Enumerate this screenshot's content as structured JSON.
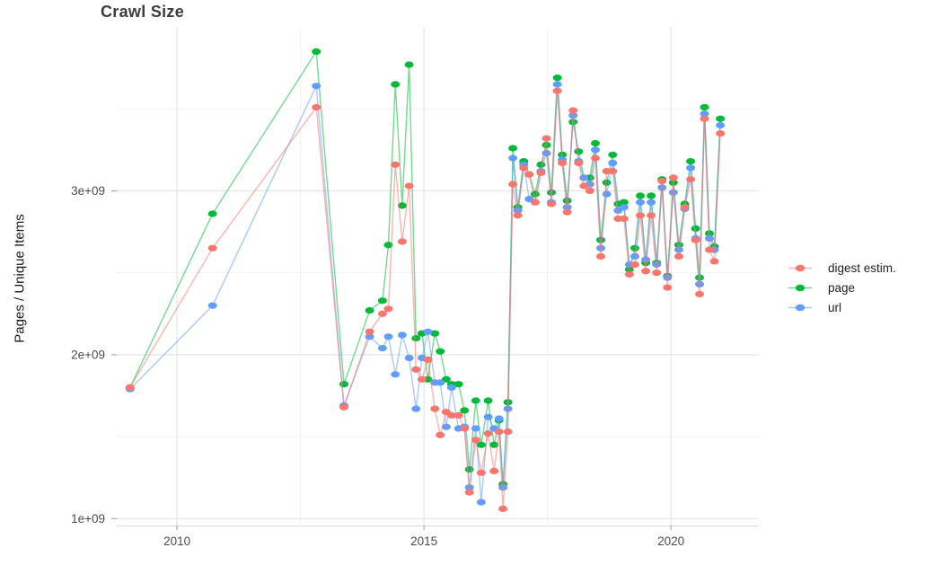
{
  "title": "Crawl Size",
  "chart_data": {
    "type": "line",
    "title": "Crawl Size",
    "xlabel": "",
    "ylabel": "Pages / Unique Items",
    "x_unit": "year (decimal date of crawl)",
    "y_unit": "count, 1e9 (billions) of items",
    "xlim": [
      2008.78,
      2021.78
    ],
    "ylim_billions": [
      0.958,
      4.0
    ],
    "grid": true,
    "legend_position": "right",
    "x_major_ticks": [
      {
        "value": 2010,
        "label": "2010"
      },
      {
        "value": 2015,
        "label": "2015"
      },
      {
        "value": 2020,
        "label": "2020"
      }
    ],
    "x_minor_gridlines": [
      2012.5,
      2017.5
    ],
    "y_major_ticks": [
      {
        "value": 1,
        "label": "1e+09"
      },
      {
        "value": 2,
        "label": "2e+09"
      },
      {
        "value": 3,
        "label": "3e+09"
      }
    ],
    "y_minor_gridlines": [
      1.5,
      2.5,
      3.5
    ],
    "x": [
      2009.05,
      2010.72,
      2012.82,
      2013.38,
      2013.9,
      2014.16,
      2014.28,
      2014.42,
      2014.56,
      2014.7,
      2014.84,
      2014.96,
      2015.08,
      2015.22,
      2015.33,
      2015.45,
      2015.56,
      2015.7,
      2015.82,
      2015.92,
      2016.05,
      2016.16,
      2016.3,
      2016.42,
      2016.52,
      2016.6,
      2016.7,
      2016.8,
      2016.9,
      2017.02,
      2017.13,
      2017.25,
      2017.37,
      2017.48,
      2017.58,
      2017.7,
      2017.8,
      2017.9,
      2018.02,
      2018.13,
      2018.24,
      2018.36,
      2018.47,
      2018.58,
      2018.7,
      2018.82,
      2018.93,
      2019.05,
      2019.16,
      2019.27,
      2019.38,
      2019.49,
      2019.6,
      2019.71,
      2019.82,
      2019.93,
      2020.05,
      2020.16,
      2020.28,
      2020.4,
      2020.5,
      2020.58,
      2020.68,
      2020.78,
      2020.88,
      2021.0
    ],
    "series": [
      {
        "name": "digest estim.",
        "color": "#F8766D",
        "values": [
          1.8,
          2.65,
          3.51,
          1.68,
          2.14,
          2.25,
          2.28,
          3.16,
          2.69,
          3.03,
          1.91,
          1.85,
          1.97,
          1.67,
          1.51,
          1.65,
          1.63,
          1.63,
          1.55,
          1.16,
          1.48,
          1.28,
          1.52,
          1.29,
          1.53,
          1.06,
          1.53,
          3.04,
          2.85,
          3.14,
          3.1,
          2.93,
          3.11,
          3.32,
          2.92,
          3.61,
          3.17,
          2.87,
          3.49,
          3.17,
          3.03,
          3.0,
          3.2,
          2.6,
          3.12,
          3.12,
          2.83,
          2.83,
          2.49,
          2.55,
          2.85,
          2.51,
          2.85,
          2.5,
          3.06,
          2.41,
          3.08,
          2.6,
          2.9,
          3.07,
          2.7,
          2.37,
          3.44,
          2.64,
          2.57,
          3.35
        ]
      },
      {
        "name": "page",
        "color": "#00BA38",
        "values": [
          1.8,
          2.86,
          3.85,
          1.82,
          2.27,
          2.33,
          2.67,
          3.65,
          2.91,
          3.77,
          2.1,
          2.13,
          1.85,
          2.13,
          2.02,
          1.85,
          1.82,
          1.82,
          1.66,
          1.3,
          1.72,
          1.45,
          1.72,
          1.45,
          1.6,
          1.21,
          1.71,
          3.26,
          2.9,
          3.18,
          3.1,
          2.98,
          3.16,
          3.28,
          2.99,
          3.69,
          3.22,
          2.94,
          3.42,
          3.24,
          3.08,
          3.08,
          3.29,
          2.7,
          3.05,
          3.22,
          2.92,
          2.93,
          2.52,
          2.65,
          2.97,
          2.56,
          2.97,
          2.56,
          3.07,
          2.48,
          3.05,
          2.67,
          2.92,
          3.18,
          2.77,
          2.47,
          3.51,
          2.74,
          2.66,
          3.44
        ]
      },
      {
        "name": "url",
        "color": "#619CFF",
        "values": [
          1.79,
          2.3,
          3.64,
          1.69,
          2.11,
          2.04,
          2.11,
          1.88,
          2.12,
          1.98,
          1.67,
          1.98,
          2.14,
          1.83,
          1.83,
          1.56,
          1.8,
          1.55,
          1.56,
          1.19,
          1.55,
          1.1,
          1.62,
          1.55,
          1.61,
          1.19,
          1.67,
          3.2,
          2.88,
          3.16,
          2.95,
          2.93,
          3.12,
          3.23,
          2.93,
          3.65,
          3.19,
          2.9,
          3.46,
          3.18,
          3.08,
          3.04,
          3.25,
          2.65,
          2.98,
          3.17,
          2.88,
          2.9,
          2.55,
          2.6,
          2.93,
          2.58,
          2.93,
          2.55,
          3.02,
          2.47,
          2.99,
          2.64,
          2.89,
          3.14,
          2.71,
          2.43,
          3.47,
          2.71,
          2.64,
          3.4
        ]
      }
    ],
    "draw_order": [
      "page",
      "url",
      "digest estim."
    ],
    "style": {
      "grid_major_color": "#E5E5E5",
      "grid_minor_color": "#F0F0F0",
      "axis_line_color": "#D9D9D9",
      "tick_color": "#999999",
      "tick_label_color": "#4D4D4D",
      "line_opacity": 0.55,
      "point_rx": 5,
      "point_ry": 3.6
    }
  },
  "legend": {
    "items": [
      {
        "label": "digest estim.",
        "color": "#F8766D"
      },
      {
        "label": "page",
        "color": "#00BA38"
      },
      {
        "label": "url",
        "color": "#619CFF"
      }
    ]
  }
}
